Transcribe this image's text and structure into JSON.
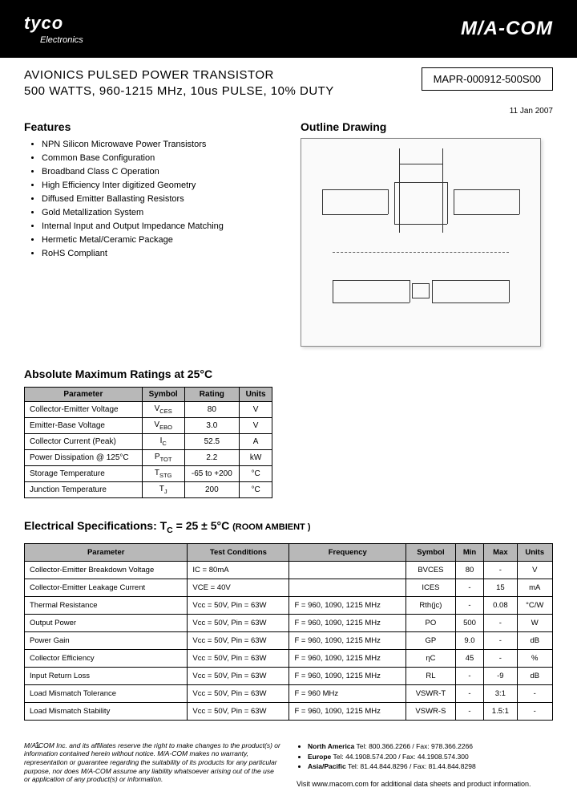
{
  "header": {
    "company": "tyco",
    "company_sub": "Electronics",
    "brand": "M/A-COM"
  },
  "title": {
    "line1": "AVIONICS PULSED POWER TRANSISTOR",
    "line2": "500 WATTS, 960-1215 MHz, 10us PULSE, 10% DUTY",
    "part_number": "MAPR-000912-500S00",
    "date": "11 Jan 2007"
  },
  "features": {
    "heading": "Features",
    "items": [
      "NPN Silicon Microwave Power Transistors",
      "Common Base Configuration",
      "Broadband Class C Operation",
      "High Efficiency Inter digitized Geometry",
      "Diffused Emitter Ballasting Resistors",
      "Gold Metallization System",
      "Internal Input and Output Impedance Matching",
      "Hermetic Metal/Ceramic Package",
      "RoHS Compliant"
    ]
  },
  "outline": {
    "heading": "Outline Drawing"
  },
  "ratings": {
    "heading": "Absolute Maximum Ratings at 25°C",
    "headers": [
      "Parameter",
      "Symbol",
      "Rating",
      "Units"
    ],
    "rows": [
      [
        "Collector-Emitter Voltage",
        "V",
        "CES",
        "80",
        "V"
      ],
      [
        "Emitter-Base Voltage",
        "V",
        "EBO",
        "3.0",
        "V"
      ],
      [
        "Collector Current (Peak)",
        "I",
        "C",
        "52.5",
        "A"
      ],
      [
        "Power Dissipation @ 125°C",
        "P",
        "TOT",
        "2.2",
        "kW"
      ],
      [
        "Storage Temperature",
        "T",
        "STG",
        "-65 to +200",
        "°C"
      ],
      [
        "Junction Temperature",
        "T",
        "J",
        "200",
        "°C"
      ]
    ]
  },
  "specs": {
    "heading_prefix": "Electrical Specifications:  T",
    "heading_sub": "C",
    "heading_suffix": " = 25 ± 5°C ",
    "heading_room": "(ROOM AMBIENT )",
    "headers": [
      "Parameter",
      "Test Conditions",
      "Frequency",
      "Symbol",
      "Min",
      "Max",
      "Units"
    ],
    "rows": [
      [
        "Collector-Emitter Breakdown Voltage",
        "IC = 80mA",
        "",
        "BVCES",
        "80",
        "-",
        "V"
      ],
      [
        "Collector-Emitter Leakage Current",
        "VCE = 40V",
        "",
        "ICES",
        "-",
        "15",
        "mA"
      ],
      [
        "Thermal Resistance",
        "Vcc = 50V,  Pin = 63W",
        "F = 960, 1090, 1215 MHz",
        "Rth(jc)",
        "-",
        "0.08",
        "°C/W"
      ],
      [
        "Output Power",
        "Vcc = 50V,  Pin = 63W",
        "F = 960, 1090, 1215 MHz",
        "PO",
        "500",
        "-",
        "W"
      ],
      [
        "Power Gain",
        "Vcc = 50V,  Pin = 63W",
        "F = 960, 1090, 1215 MHz",
        "GP",
        "9.0",
        "-",
        "dB"
      ],
      [
        "Collector Efficiency",
        "Vcc = 50V,  Pin = 63W",
        "F = 960, 1090, 1215 MHz",
        "ηC",
        "45",
        "-",
        "%"
      ],
      [
        "Input Return Loss",
        "Vcc = 50V,  Pin = 63W",
        "F = 960, 1090, 1215 MHz",
        "RL",
        "-",
        "-9",
        "dB"
      ],
      [
        "Load Mismatch Tolerance",
        "Vcc = 50V,  Pin = 63W",
        "F = 960 MHz",
        "VSWR-T",
        "-",
        "3:1",
        "-"
      ],
      [
        "Load Mismatch Stability",
        "Vcc = 50V,  Pin = 63W",
        "F = 960, 1090, 1215 MHz",
        "VSWR-S",
        "-",
        "1.5:1",
        "-"
      ]
    ]
  },
  "footer": {
    "page_num": "1",
    "disclaimer": "M/A-COM Inc. and its affiliates reserve the right to make changes to the product(s) or information contained herein without notice. M/A-COM makes no warranty, representation or guarantee regarding the suitability of its products for any particular purpose, nor does M/A-COM assume any liability whatsoever arising out of the use or application of any product(s) or information.",
    "contacts": [
      {
        "region": "North America",
        "text": "  Tel: 800.366.2266 / Fax: 978.366.2266"
      },
      {
        "region": "Europe",
        "text": "  Tel: 44.1908.574.200 / Fax: 44.1908.574.300"
      },
      {
        "region": "Asia/Pacific",
        "text": "  Tel: 81.44.844.8296 / Fax: 81.44.844.8298"
      }
    ],
    "visit": "Visit www.macom.com for additional data sheets and product information."
  }
}
